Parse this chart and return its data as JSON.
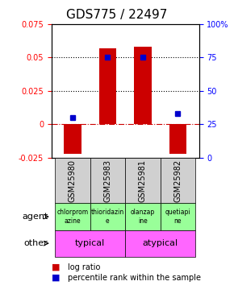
{
  "title": "GDS775 / 22497",
  "samples": [
    "GSM25980",
    "GSM25983",
    "GSM25981",
    "GSM25982"
  ],
  "log_ratios": [
    -0.022,
    0.057,
    0.058,
    -0.022
  ],
  "percentile_ranks": [
    0.3,
    0.75,
    0.75,
    0.33
  ],
  "ylim_left": [
    -0.025,
    0.075
  ],
  "ylim_right": [
    0,
    1.0
  ],
  "yticks_left": [
    -0.025,
    0,
    0.025,
    0.05,
    0.075
  ],
  "yticks_right": [
    0,
    0.25,
    0.5,
    0.75,
    1.0
  ],
  "ytick_labels_left": [
    "-0.025",
    "0",
    "0.025",
    "0.05",
    "0.075"
  ],
  "ytick_labels_right": [
    "0",
    "25",
    "50",
    "75",
    "100%"
  ],
  "hlines": [
    0.025,
    0.05
  ],
  "bar_color": "#cc0000",
  "dot_color": "#0000cc",
  "zero_line_color": "#cc0000",
  "agent_labels": [
    "chlorprom\nazine",
    "thioridazin\ne",
    "olanzap\nine",
    "quetiapi\nne"
  ],
  "agent_color": "#99ff99",
  "other_labels": [
    [
      "typical",
      2
    ],
    [
      "atypical",
      2
    ]
  ],
  "other_color": "#ff66ff",
  "bar_width": 0.5,
  "grid_color": "#000000",
  "title_fontsize": 11,
  "tick_fontsize": 7,
  "label_fontsize": 8,
  "legend_fontsize": 7,
  "sample_label_fontsize": 7
}
